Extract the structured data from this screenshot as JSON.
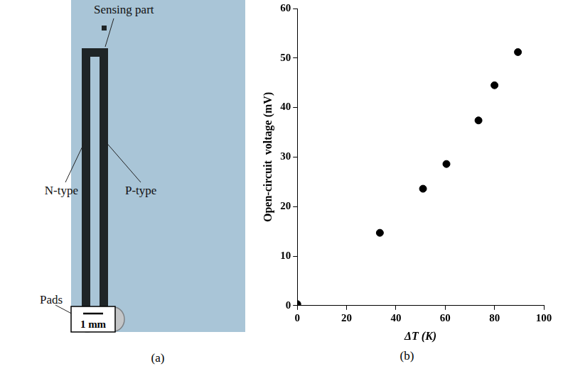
{
  "panel_a": {
    "letter": "(a)",
    "sensing_label": "Sensing part",
    "n_label": "N-type",
    "p_label": "P-type",
    "pads_label": "Pads",
    "scale_bar": "1 mm"
  },
  "chart_data": {
    "type": "scatter",
    "letter": "(b)",
    "x_label": "ΔT (K)",
    "y_label": "Open-circuit  voltage (mV)",
    "x": [
      0,
      33.5,
      51,
      60.5,
      73.5,
      80,
      89.5
    ],
    "values": [
      0.3,
      14.7,
      23.6,
      28.6,
      37.4,
      44.5,
      51.2
    ],
    "color": "#000000",
    "marker": "circle",
    "xlim": [
      0,
      100
    ],
    "xticks": [
      0,
      20,
      40,
      60,
      80,
      100
    ],
    "ylim": [
      0,
      60
    ],
    "yticks": [
      0,
      10,
      20,
      30,
      40,
      50,
      60
    ],
    "grid": false
  }
}
